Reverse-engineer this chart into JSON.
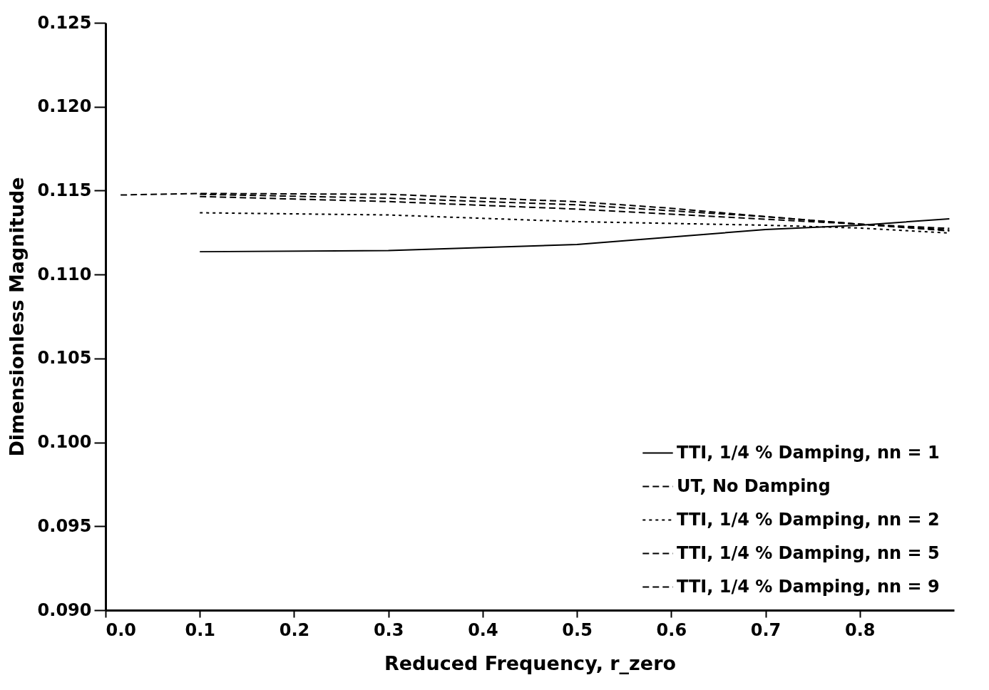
{
  "chart_data": {
    "type": "line",
    "xlabel": "Reduced Frequency, r_zero",
    "ylabel": "Dimensionless Magnitude",
    "xlim": [
      0,
      0.9
    ],
    "ylim": [
      0.09,
      0.125
    ],
    "xticks": [
      {
        "value": 0,
        "label": "0.0"
      },
      0.1,
      0.2,
      0.3,
      0.4,
      0.5,
      0.6,
      0.7,
      0.8
    ],
    "yticks": [
      {
        "value": 0.09,
        "label": "0.090"
      },
      0.095,
      {
        "value": 0.1,
        "label": "0.100"
      },
      0.105,
      {
        "value": 0.11,
        "label": "0.110"
      },
      0.115,
      {
        "value": 0.12,
        "label": "0.120"
      },
      0.125
    ],
    "grid": false,
    "legend": "bottom right",
    "marker": "none",
    "series": [
      {
        "name": "TTI, 1/4 % Damping, nn = 1",
        "color": "#000000",
        "line_style": "solid",
        "x": [
          0.1,
          0.3,
          0.5,
          0.7,
          0.8,
          0.895
        ],
        "values": [
          0.11136,
          0.11143,
          0.11179,
          0.11268,
          0.11294,
          0.11332
        ]
      },
      {
        "name": "UT, No Damping",
        "color": "#000000",
        "line_style": "dashed",
        "x": [
          0.016,
          0.1,
          0.3,
          0.5,
          0.6,
          0.7,
          0.8,
          0.895
        ],
        "values": [
          0.11474,
          0.11483,
          0.11478,
          0.11434,
          0.11395,
          0.11345,
          0.113,
          0.1126
        ]
      },
      {
        "name": "TTI, 1/4 % Damping, nn = 2",
        "color": "#000000",
        "line_style": "dotted",
        "x": [
          0.1,
          0.3,
          0.5,
          0.7,
          0.8,
          0.895
        ],
        "values": [
          0.11368,
          0.11355,
          0.11315,
          0.11294,
          0.11277,
          0.11247
        ]
      },
      {
        "name": "TTI, 1/4 % Damping, nn = 5",
        "color": "#000000",
        "line_style": "dashed",
        "x": [
          0.1,
          0.3,
          0.5,
          0.7,
          0.8,
          0.895
        ],
        "values": [
          0.11465,
          0.11435,
          0.1139,
          0.1133,
          0.113,
          0.11275
        ]
      },
      {
        "name": "TTI, 1/4 % Damping, nn = 9",
        "color": "#000000",
        "line_style": "dashed",
        "x": [
          0.1,
          0.3,
          0.5,
          0.7,
          0.8,
          0.895
        ],
        "values": [
          0.11478,
          0.11455,
          0.11415,
          0.11345,
          0.113,
          0.11265
        ]
      }
    ]
  }
}
